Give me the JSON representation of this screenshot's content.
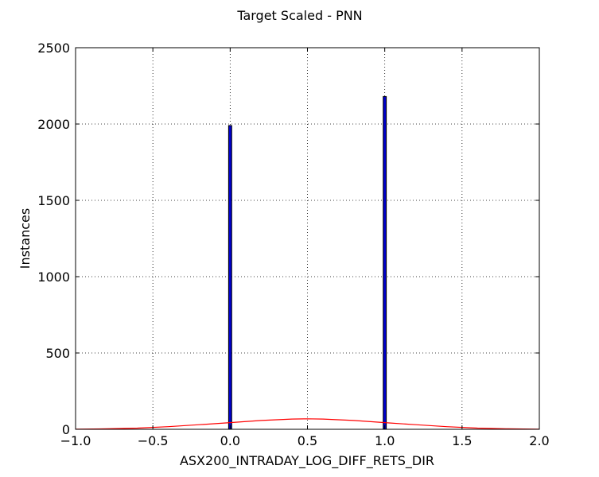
{
  "chart_data": {
    "type": "bar",
    "title": "Target Scaled - PNN",
    "xlabel": "ASX200_INTRADAY_LOG_DIFF_RETS_DIR",
    "ylabel": "Instances",
    "xlim": [
      -1.0,
      2.0
    ],
    "ylim": [
      0,
      2500
    ],
    "x_ticks": [
      -1.0,
      -0.5,
      0.0,
      0.5,
      1.0,
      1.5,
      2.0
    ],
    "x_tick_labels": [
      "−1.0",
      "−0.5",
      "0.0",
      "0.5",
      "1.0",
      "1.5",
      "2.0"
    ],
    "y_ticks": [
      0,
      500,
      1000,
      1500,
      2000,
      2500
    ],
    "y_tick_labels": [
      "0",
      "500",
      "1000",
      "1500",
      "2000",
      "2500"
    ],
    "grid": true,
    "grid_style": "dotted",
    "bars": [
      {
        "x": 0.0,
        "value": 1990
      },
      {
        "x": 1.0,
        "value": 2180
      }
    ],
    "bar_width": 0.02,
    "bar_color": "#0000cc",
    "curve": {
      "type": "line",
      "color": "#ff0000",
      "x": [
        -1.0,
        -0.8,
        -0.6,
        -0.4,
        -0.2,
        0.0,
        0.2,
        0.4,
        0.5,
        0.6,
        0.8,
        1.0,
        1.2,
        1.4,
        1.6,
        1.8,
        2.0
      ],
      "y": [
        1,
        3,
        8,
        17,
        30,
        44,
        58,
        67,
        69,
        67,
        58,
        44,
        30,
        17,
        8,
        3,
        1
      ]
    }
  }
}
